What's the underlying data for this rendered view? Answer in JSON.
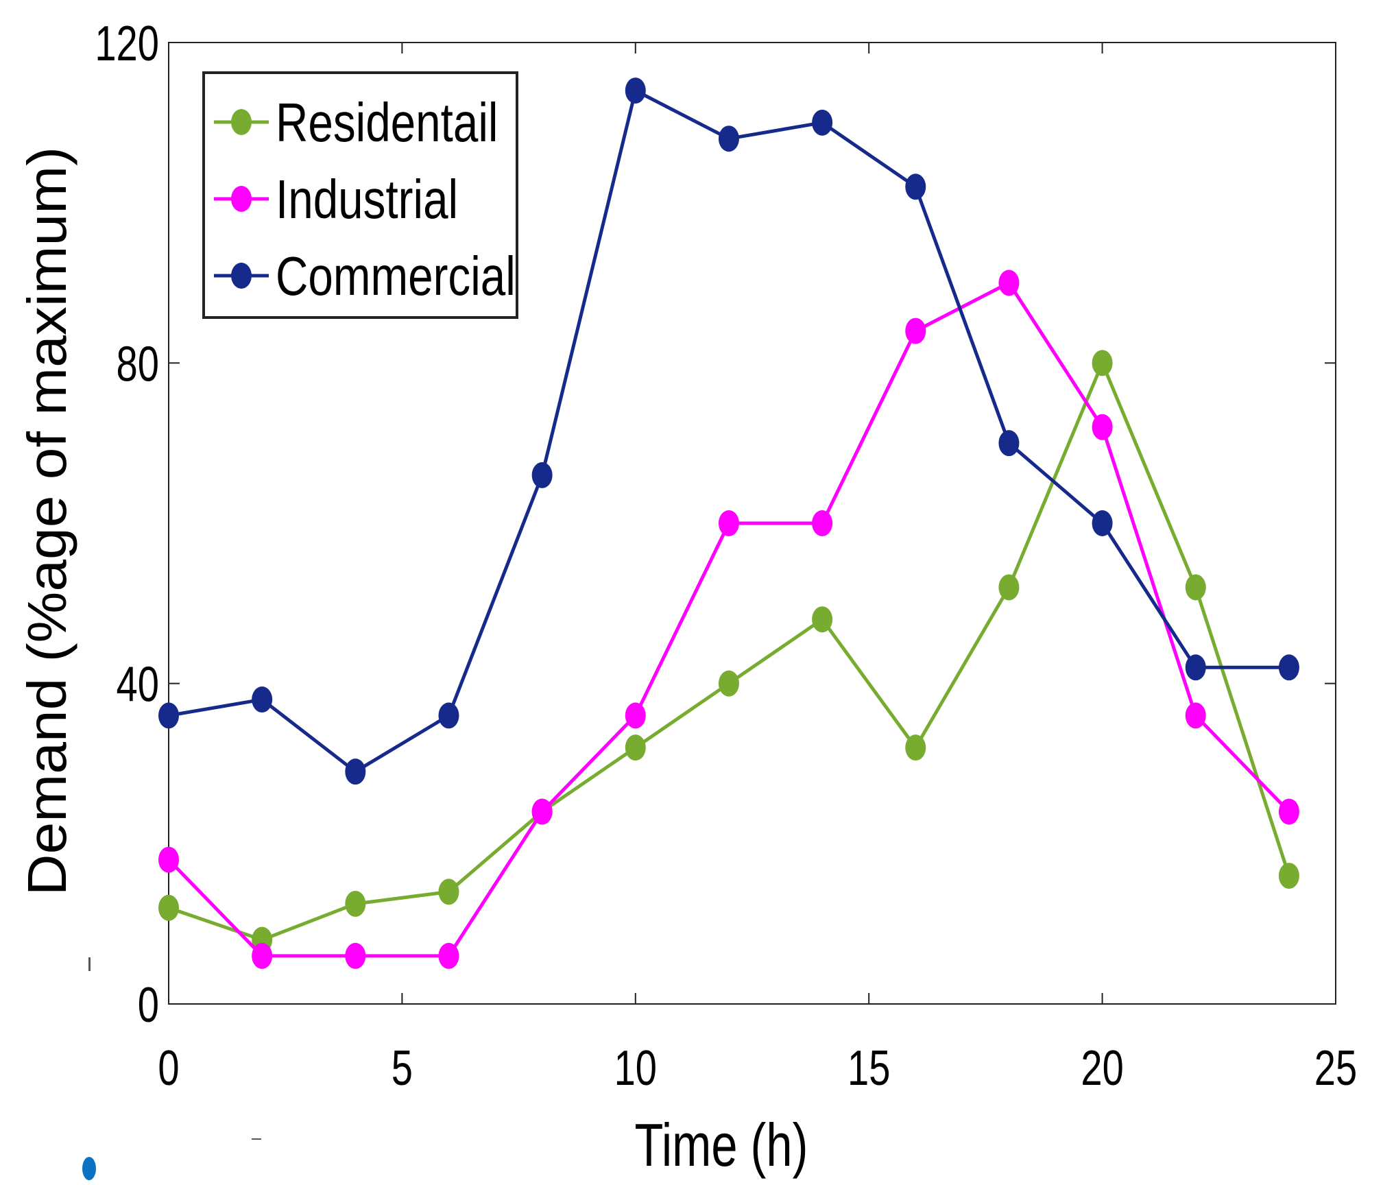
{
  "chart_data": {
    "type": "line",
    "title": "",
    "xlabel": "Time (h)",
    "ylabel": "Demand (%age of maximum)",
    "xlim": [
      0,
      25
    ],
    "ylim": [
      0,
      120
    ],
    "xticks": [
      0,
      5,
      10,
      15,
      20,
      25
    ],
    "yticks": [
      0,
      40,
      80,
      120
    ],
    "xtick_labels": [
      "0",
      "5",
      "10",
      "15",
      "20",
      "25"
    ],
    "ytick_labels": [
      "0",
      "40",
      "80",
      "120"
    ],
    "grid": false,
    "legend_position": "top-left",
    "x": [
      0,
      2,
      4,
      6,
      8,
      10,
      12,
      14,
      16,
      18,
      20,
      22,
      24
    ],
    "series": [
      {
        "name": "Residentail",
        "color": "#77ac30",
        "values": [
          12,
          8,
          12.5,
          14,
          24,
          32,
          40,
          48,
          32,
          52,
          80,
          52,
          16
        ]
      },
      {
        "name": "Industrial",
        "color": "#ff00ff",
        "values": [
          18,
          6,
          6,
          6,
          24,
          36,
          60,
          60,
          84,
          90,
          72,
          36,
          24
        ]
      },
      {
        "name": "Commercial",
        "color": "#162a8c",
        "values": [
          36,
          38,
          29,
          36,
          66,
          114,
          108,
          110,
          102,
          70,
          60,
          42,
          42
        ]
      }
    ]
  }
}
